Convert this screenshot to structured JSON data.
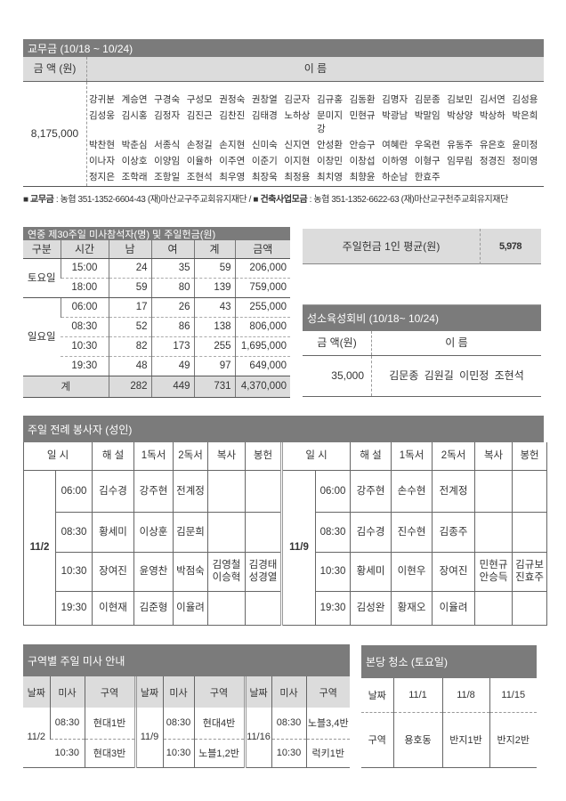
{
  "offering": {
    "title": "교무금 (10/18 ~ 10/24)",
    "col_amount": "금 액 (원)",
    "col_names": "이 름",
    "amount": "8,175,000",
    "names": [
      "강귀분",
      "계승연",
      "구경숙",
      "구성모",
      "권정숙",
      "권창열",
      "김군자",
      "김규홍",
      "김동환",
      "김명자",
      "김문종",
      "김보민",
      "김서연",
      "김성용",
      "김성웅",
      "김시홍",
      "김정자",
      "김진근",
      "김찬진",
      "김태경",
      "노하상",
      "문미지강",
      "민현규",
      "박광남",
      "박말임",
      "박상양",
      "박상하",
      "박은희",
      "박찬현",
      "박춘심",
      "서종식",
      "손정길",
      "손지현",
      "신미숙",
      "신지연",
      "안성환",
      "안승구",
      "여혜란",
      "우옥련",
      "유동주",
      "유은호",
      "윤미정",
      "이나자",
      "이상호",
      "이양임",
      "이율하",
      "이주연",
      "이준기",
      "이지현",
      "이창민",
      "이창섭",
      "이하영",
      "이형구",
      "임무림",
      "정경진",
      "정미영",
      "정지은",
      "조학래",
      "조항일",
      "조현석",
      "최우영",
      "최장욱",
      "최정용",
      "최치영",
      "최향윤",
      "하순남",
      "한효주"
    ]
  },
  "accounts": {
    "label1": "교무금",
    "text1": " : 농협 351-1352-6604-43 (재)마산교구주교회유지재단 / ",
    "label2": "건축사업모금",
    "text2": " : 농협 351-1352-6622-63 (재)마산교구천주교회유지재단"
  },
  "attendance": {
    "title": "연중 제30주일 미사참석자(명) 및 주일헌금(원)",
    "headers": [
      "구분",
      "시간",
      "남",
      "여",
      "계",
      "금액"
    ],
    "groups": [
      {
        "day": "토요일",
        "rows": [
          [
            "15:00",
            "24",
            "35",
            "59",
            "206,000"
          ],
          [
            "18:00",
            "59",
            "80",
            "139",
            "759,000"
          ]
        ]
      },
      {
        "day": "일요일",
        "rows": [
          [
            "06:00",
            "17",
            "26",
            "43",
            "255,000"
          ],
          [
            "08:30",
            "52",
            "86",
            "138",
            "806,000"
          ],
          [
            "10:30",
            "82",
            "173",
            "255",
            "1,695,000"
          ],
          [
            "19:30",
            "48",
            "49",
            "97",
            "649,000"
          ]
        ]
      }
    ],
    "total": {
      "label": "계",
      "values": [
        "282",
        "449",
        "731",
        "4,370,000"
      ]
    }
  },
  "average": {
    "label": "주일헌금 1인 평균(원)",
    "value": "5,978"
  },
  "youth": {
    "title": "성소육성회비 (10/18~ 10/24)",
    "col_amount": "금 액(원)",
    "col_names": "이 름",
    "amount": "35,000",
    "names": "김문종 김원길 이민정 조현석"
  },
  "servers": {
    "title": "주일 전례 봉사자 (성인)",
    "headers": [
      "일 시",
      "해 설",
      "1독서",
      "2독서",
      "복사",
      "봉헌"
    ],
    "dates": [
      {
        "date": "11/2",
        "rows": [
          {
            "time": "06:00",
            "cells": [
              "김수경",
              "강주현",
              "전계정",
              "",
              ""
            ]
          },
          {
            "time": "08:30",
            "cells": [
              "황세미",
              "이상훈",
              "김문희",
              "",
              ""
            ]
          },
          {
            "time": "10:30",
            "cells": [
              "장여진",
              "윤영찬",
              "박점숙",
              "김영철\n이승혁",
              "김경태\n성경열"
            ]
          },
          {
            "time": "19:30",
            "cells": [
              "이현재",
              "김준형",
              "이율려",
              "",
              ""
            ]
          }
        ]
      },
      {
        "date": "11/9",
        "rows": [
          {
            "time": "06:00",
            "cells": [
              "강주현",
              "손수현",
              "전계정",
              "",
              ""
            ]
          },
          {
            "time": "08:30",
            "cells": [
              "김수경",
              "진수현",
              "김종주",
              "",
              ""
            ]
          },
          {
            "time": "10:30",
            "cells": [
              "황세미",
              "이현우",
              "장여진",
              "민현규\n안승득",
              "김규보\n진효주"
            ]
          },
          {
            "time": "19:30",
            "cells": [
              "김성완",
              "황재오",
              "이율려",
              "",
              ""
            ]
          }
        ]
      }
    ]
  },
  "district": {
    "title": "구역별 주일 미사 안내",
    "headers": [
      "날짜",
      "미사",
      "구역"
    ],
    "groups": [
      {
        "date": "11/2",
        "rows": [
          {
            "time": "08:30",
            "area": "현대1반"
          },
          {
            "time": "10:30",
            "area": "현대3반"
          }
        ]
      },
      {
        "date": "11/9",
        "rows": [
          {
            "time": "08:30",
            "area": "현대4반"
          },
          {
            "time": "10:30",
            "area": "노블1,2반"
          }
        ]
      },
      {
        "date": "11/16",
        "rows": [
          {
            "time": "08:30",
            "area": "노블3,4반"
          },
          {
            "time": "10:30",
            "area": "럭키1반"
          }
        ]
      }
    ]
  },
  "cleaning": {
    "title": "본당 청소 (토요일)",
    "date_label": "날짜",
    "dates": [
      "11/1",
      "11/8",
      "11/15"
    ],
    "area_label": "구역",
    "areas": [
      "용호동",
      "반지1반",
      "반지2반"
    ]
  }
}
